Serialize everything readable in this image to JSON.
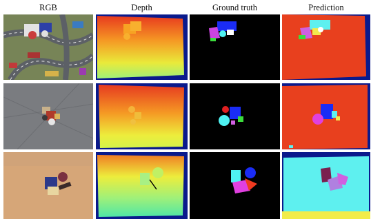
{
  "headers": {
    "rgb": "RGB",
    "depth": "Depth",
    "ground_truth": "Ground truth",
    "prediction": "Prediction"
  },
  "colors": {
    "depth_background": "#0a1a8c",
    "depth_near": "#e8341e",
    "depth_far": "#c6f25a",
    "prediction_background": "#e8401e",
    "prediction_background_row3": "#5ef0ef",
    "ground_truth_background": "#000000"
  }
}
